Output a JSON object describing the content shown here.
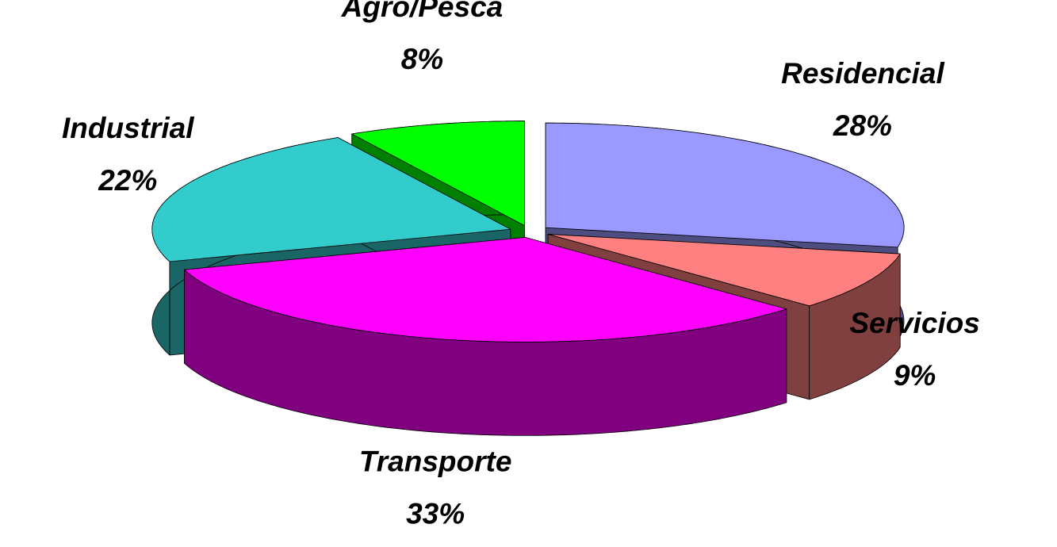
{
  "chart_data": {
    "type": "pie3d",
    "categories": [
      "Residencial",
      "Servicios",
      "Transporte",
      "Industrial",
      "Agro/Pesca"
    ],
    "values": [
      28,
      9,
      33,
      22,
      8
    ],
    "value_labels": [
      "28%",
      "9%",
      "33%",
      "22%",
      "8%"
    ],
    "colors": [
      "#9999ff",
      "#ff8080",
      "#ff00ff",
      "#33cccc",
      "#00ff00"
    ],
    "side_colors": [
      "#4d4d80",
      "#804040",
      "#800080",
      "#1a6666",
      "#008000"
    ]
  }
}
